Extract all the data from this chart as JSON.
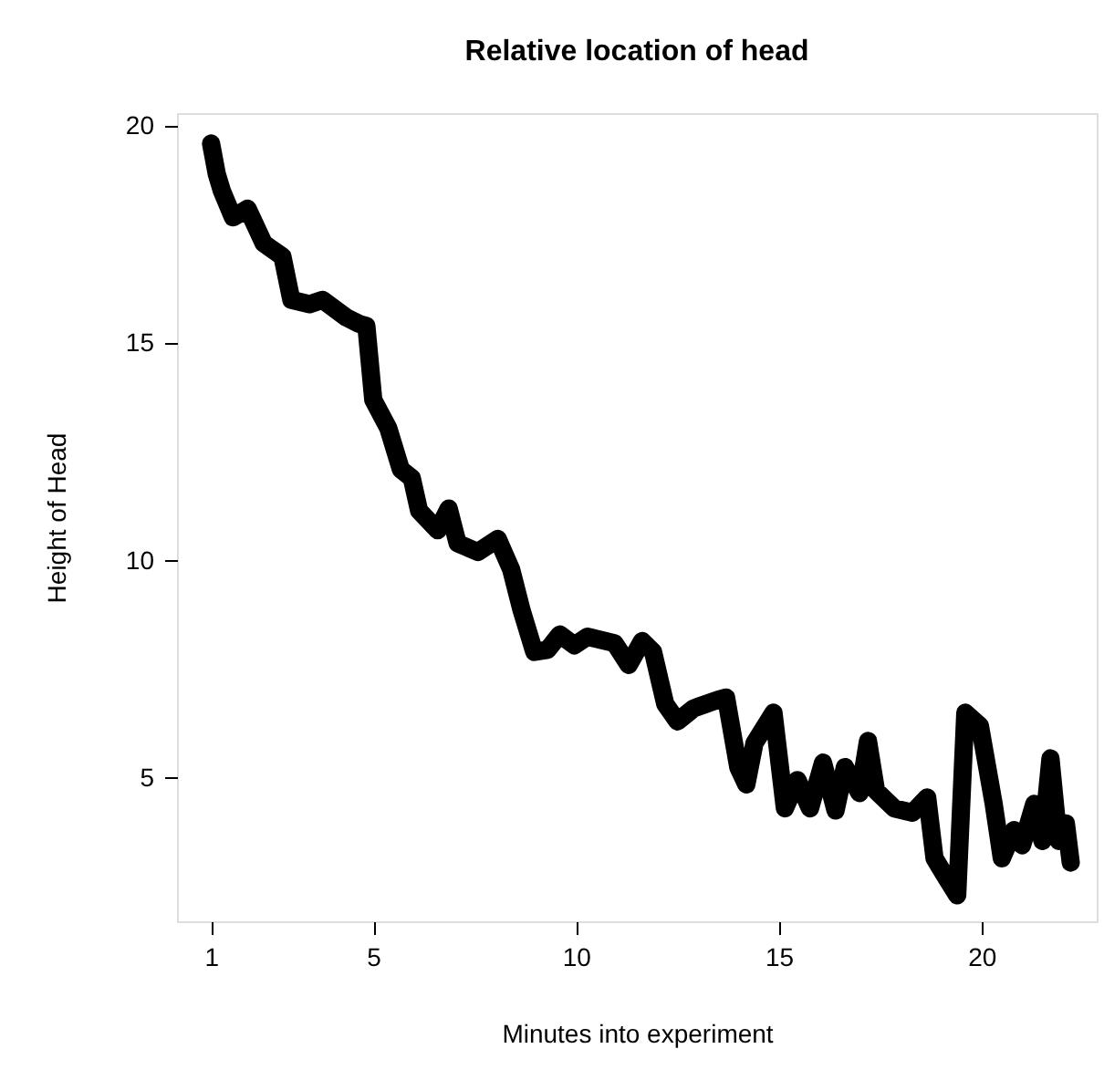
{
  "chart_data": {
    "type": "line",
    "title": "Relative location of head",
    "xlabel": "Minutes into experiment",
    "ylabel": "Height of Head",
    "x": [
      1,
      1.14,
      1.27,
      1.54,
      1.9,
      2.3,
      2.76,
      2.98,
      3.43,
      3.75,
      4.33,
      4.65,
      4.83,
      5.0,
      5.37,
      5.68,
      5.95,
      6.13,
      6.59,
      6.86,
      7.08,
      7.58,
      8.07,
      8.4,
      8.66,
      8.97,
      9.3,
      9.6,
      9.96,
      10.28,
      10.95,
      11.3,
      11.63,
      11.9,
      12.2,
      12.5,
      12.9,
      13.5,
      13.7,
      14.0,
      14.2,
      14.4,
      14.87,
      15.15,
      15.46,
      15.77,
      16.09,
      16.4,
      16.63,
      16.99,
      17.2,
      17.4,
      17.85,
      18.3,
      18.66,
      18.84,
      19.1,
      19.4,
      19.6,
      19.96,
      20.3,
      20.5,
      20.8,
      21.0,
      21.3,
      21.5,
      21.7,
      21.9,
      22.08,
      22.2
    ],
    "series": [
      {
        "color": "#000000",
        "values": [
          19.6,
          18.9,
          18.5,
          17.9,
          18.1,
          17.3,
          17.0,
          16.0,
          15.9,
          16.0,
          15.6,
          15.45,
          15.4,
          13.7,
          13.05,
          12.1,
          11.9,
          11.15,
          10.7,
          11.2,
          10.4,
          10.2,
          10.5,
          9.8,
          8.85,
          7.9,
          7.95,
          8.3,
          8.05,
          8.25,
          8.1,
          7.6,
          8.15,
          7.9,
          6.7,
          6.3,
          6.6,
          6.8,
          6.85,
          5.25,
          4.85,
          5.8,
          6.5,
          4.3,
          4.95,
          4.3,
          5.35,
          4.25,
          5.25,
          4.65,
          5.85,
          4.7,
          4.3,
          4.2,
          4.55,
          3.15,
          2.75,
          2.3,
          6.5,
          6.2,
          4.4,
          3.15,
          3.8,
          3.45,
          4.4,
          3.55,
          5.45,
          3.55,
          3.95,
          3.05
        ]
      }
    ],
    "xlim": [
      0.16,
      22.84
    ],
    "xticks": [
      1,
      5,
      10,
      15,
      20
    ],
    "ylim": [
      1.7,
      20.3
    ],
    "yticks": [
      5,
      10,
      15,
      20
    ],
    "line_style": "solid"
  }
}
